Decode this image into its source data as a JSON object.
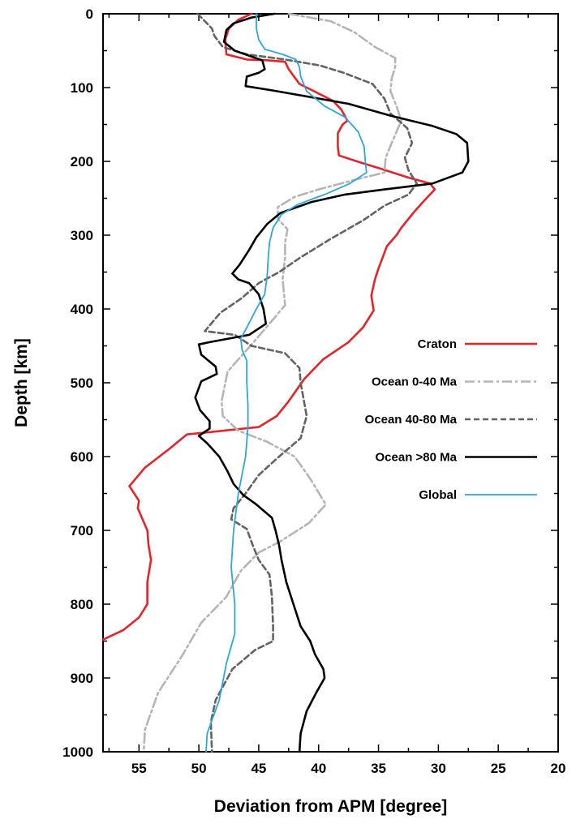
{
  "chart_data": {
    "type": "line",
    "title": "",
    "xlabel": "Deviation from APM [degree]",
    "ylabel": "Depth [km]",
    "xlim": [
      58,
      20
    ],
    "ylim": [
      0,
      1000
    ],
    "x_reversed": true,
    "y_reversed": true,
    "x_ticks": [
      "55",
      "50",
      "45",
      "40",
      "35",
      "30",
      "25",
      "20"
    ],
    "y_ticks": [
      "0",
      "100",
      "200",
      "300",
      "400",
      "500",
      "600",
      "700",
      "800",
      "900",
      "1000"
    ],
    "grid": false,
    "legend_position": "right",
    "series": [
      {
        "name": "Craton",
        "color": "#e3242b",
        "dash": "solid",
        "points": [
          [
            45.6,
            0
          ],
          [
            46.7,
            8
          ],
          [
            47.5,
            20
          ],
          [
            47.8,
            35
          ],
          [
            47.7,
            55
          ],
          [
            46,
            62
          ],
          [
            44.3,
            63
          ],
          [
            42.8,
            65
          ],
          [
            42.5,
            75
          ],
          [
            41.6,
            95
          ],
          [
            40,
            108
          ],
          [
            38.8,
            118
          ],
          [
            38.1,
            130
          ],
          [
            37.6,
            145
          ],
          [
            38,
            150
          ],
          [
            38.4,
            162
          ],
          [
            38.4,
            180
          ],
          [
            38.3,
            192
          ],
          [
            36.8,
            200
          ],
          [
            34.8,
            210
          ],
          [
            32.5,
            222
          ],
          [
            30.7,
            230
          ],
          [
            30.3,
            238
          ],
          [
            31,
            250
          ],
          [
            32,
            268
          ],
          [
            33.1,
            290
          ],
          [
            33.5,
            300
          ],
          [
            34.3,
            315
          ],
          [
            35,
            345
          ],
          [
            35.3,
            360
          ],
          [
            35.6,
            382
          ],
          [
            35.4,
            402
          ],
          [
            36.3,
            425
          ],
          [
            37.5,
            445
          ],
          [
            39.6,
            468
          ],
          [
            41.2,
            495
          ],
          [
            42.5,
            525
          ],
          [
            43.5,
            545
          ],
          [
            45,
            560
          ],
          [
            51,
            570
          ],
          [
            52.5,
            590
          ],
          [
            54.5,
            615
          ],
          [
            55.8,
            640
          ],
          [
            55,
            660
          ],
          [
            55.1,
            670
          ],
          [
            54.3,
            700
          ],
          [
            54.2,
            720
          ],
          [
            54,
            740
          ],
          [
            54.3,
            770
          ],
          [
            54.3,
            800
          ],
          [
            55,
            818
          ],
          [
            56.3,
            835
          ],
          [
            58,
            848
          ]
        ]
      },
      {
        "name": "Ocean 0-40 Ma",
        "color": "#b5b5b5",
        "dash": "dash-dot",
        "points": [
          [
            42.5,
            0
          ],
          [
            39,
            10
          ],
          [
            37,
            25
          ],
          [
            35.3,
            45
          ],
          [
            33.6,
            60
          ],
          [
            33.6,
            72
          ],
          [
            33.9,
            88
          ],
          [
            34,
            105
          ],
          [
            33.5,
            125
          ],
          [
            33.1,
            145
          ],
          [
            33.9,
            175
          ],
          [
            34.4,
            195
          ],
          [
            34.5,
            215
          ],
          [
            37,
            225
          ],
          [
            40,
            238
          ],
          [
            42,
            248
          ],
          [
            43.4,
            262
          ],
          [
            43.4,
            278
          ],
          [
            42.6,
            292
          ],
          [
            42.8,
            310
          ],
          [
            42.8,
            330
          ],
          [
            43,
            360
          ],
          [
            42.8,
            395
          ],
          [
            44,
            418
          ],
          [
            45.7,
            450
          ],
          [
            47.6,
            485
          ],
          [
            48.1,
            525
          ],
          [
            48,
            545
          ],
          [
            46.7,
            565
          ],
          [
            44.3,
            580
          ],
          [
            42,
            600
          ],
          [
            40.7,
            630
          ],
          [
            39.4,
            665
          ],
          [
            40.8,
            690
          ],
          [
            43.2,
            715
          ],
          [
            45,
            730
          ],
          [
            46.5,
            755
          ],
          [
            47.7,
            790
          ],
          [
            49.8,
            825
          ],
          [
            51.4,
            870
          ],
          [
            53.4,
            920
          ],
          [
            54.5,
            970
          ],
          [
            54.6,
            1000
          ]
        ]
      },
      {
        "name": "Ocean 40-80 Ma",
        "color": "#636363",
        "dash": "dash",
        "points": [
          [
            50.1,
            0
          ],
          [
            49.5,
            10
          ],
          [
            48.9,
            20
          ],
          [
            48.7,
            30
          ],
          [
            48,
            45
          ],
          [
            46,
            55
          ],
          [
            42.8,
            62
          ],
          [
            39.9,
            70
          ],
          [
            37.9,
            80
          ],
          [
            35.5,
            95
          ],
          [
            34.5,
            115
          ],
          [
            34,
            135
          ],
          [
            32.6,
            155
          ],
          [
            32.2,
            175
          ],
          [
            32.8,
            195
          ],
          [
            32.5,
            212
          ],
          [
            31.8,
            230
          ],
          [
            32.5,
            245
          ],
          [
            34.5,
            260
          ],
          [
            36.3,
            280
          ],
          [
            39,
            305
          ],
          [
            41.5,
            330
          ],
          [
            43.3,
            350
          ],
          [
            45,
            365
          ],
          [
            46.4,
            385
          ],
          [
            48.2,
            405
          ],
          [
            49.5,
            430
          ],
          [
            47,
            435
          ],
          [
            45.6,
            450
          ],
          [
            42.8,
            460
          ],
          [
            41.6,
            480
          ],
          [
            41.5,
            500
          ],
          [
            41,
            545
          ],
          [
            41.5,
            575
          ],
          [
            43.3,
            600
          ],
          [
            45,
            625
          ],
          [
            46.1,
            650
          ],
          [
            47.1,
            670
          ],
          [
            47.3,
            685
          ],
          [
            46,
            698
          ],
          [
            45.5,
            720
          ],
          [
            45,
            740
          ],
          [
            44.1,
            760
          ],
          [
            43.9,
            790
          ],
          [
            43.8,
            830
          ],
          [
            43.8,
            850
          ],
          [
            45.3,
            862
          ],
          [
            47.2,
            888
          ],
          [
            48.6,
            930
          ],
          [
            49,
            960
          ],
          [
            48.9,
            1000
          ]
        ]
      },
      {
        "name": "Ocean >80 Ma",
        "color": "#000000",
        "dash": "solid",
        "points": [
          [
            43.7,
            0
          ],
          [
            45.6,
            5
          ],
          [
            47.1,
            13
          ],
          [
            47.7,
            22
          ],
          [
            47.9,
            38
          ],
          [
            47,
            50
          ],
          [
            45.6,
            58
          ],
          [
            44.7,
            63
          ],
          [
            44.5,
            75
          ],
          [
            45,
            80
          ],
          [
            46,
            85
          ],
          [
            46.1,
            98
          ],
          [
            43.8,
            104
          ],
          [
            41,
            112
          ],
          [
            37.5,
            122
          ],
          [
            34,
            138
          ],
          [
            30.5,
            152
          ],
          [
            28.5,
            163
          ],
          [
            27.6,
            175
          ],
          [
            27.5,
            200
          ],
          [
            28,
            215
          ],
          [
            30.5,
            230
          ],
          [
            34.5,
            238
          ],
          [
            37.8,
            245
          ],
          [
            40.6,
            255
          ],
          [
            43.2,
            270
          ],
          [
            44.3,
            285
          ],
          [
            45.2,
            303
          ],
          [
            45.8,
            320
          ],
          [
            46.6,
            340
          ],
          [
            47.2,
            352
          ],
          [
            46.7,
            360
          ],
          [
            45.8,
            365
          ],
          [
            45,
            380
          ],
          [
            44.6,
            400
          ],
          [
            44.4,
            420
          ],
          [
            45.8,
            435
          ],
          [
            49.1,
            445
          ],
          [
            50,
            448
          ],
          [
            49.8,
            462
          ],
          [
            48.6,
            478
          ],
          [
            48.5,
            488
          ],
          [
            49.8,
            498
          ],
          [
            50.3,
            520
          ],
          [
            49.9,
            537
          ],
          [
            49.1,
            552
          ],
          [
            49.1,
            562
          ],
          [
            50,
            572
          ],
          [
            49.3,
            582
          ],
          [
            48.3,
            600
          ],
          [
            47.6,
            620
          ],
          [
            47.1,
            637
          ],
          [
            46.3,
            652
          ],
          [
            45.2,
            665
          ],
          [
            43.9,
            683
          ],
          [
            43.6,
            700
          ],
          [
            43.3,
            720
          ],
          [
            43.1,
            740
          ],
          [
            42.7,
            770
          ],
          [
            42.1,
            800
          ],
          [
            41.5,
            830
          ],
          [
            40.7,
            850
          ],
          [
            40.3,
            868
          ],
          [
            39.6,
            888
          ],
          [
            39.5,
            900
          ],
          [
            40.2,
            920
          ],
          [
            41,
            945
          ],
          [
            41.5,
            975
          ],
          [
            41.6,
            1000
          ]
        ]
      },
      {
        "name": "Global",
        "color": "#2fa6db",
        "dash": "solid",
        "points": [
          [
            45.2,
            0
          ],
          [
            45.2,
            20
          ],
          [
            45,
            35
          ],
          [
            44.5,
            48
          ],
          [
            43,
            55
          ],
          [
            41.9,
            62
          ],
          [
            41.6,
            72
          ],
          [
            41.5,
            85
          ],
          [
            41,
            105
          ],
          [
            39.5,
            125
          ],
          [
            37.8,
            140
          ],
          [
            36.7,
            160
          ],
          [
            36.2,
            180
          ],
          [
            36.1,
            200
          ],
          [
            36,
            215
          ],
          [
            37.4,
            230
          ],
          [
            39.5,
            245
          ],
          [
            41.7,
            258
          ],
          [
            43.1,
            272
          ],
          [
            43.8,
            290
          ],
          [
            44.1,
            310
          ],
          [
            44.2,
            330
          ],
          [
            44.3,
            355
          ],
          [
            44.5,
            380
          ],
          [
            45.2,
            400
          ],
          [
            46,
            425
          ],
          [
            46.5,
            440
          ],
          [
            46.4,
            455
          ],
          [
            46,
            470
          ],
          [
            46,
            500
          ],
          [
            45.9,
            530
          ],
          [
            45.9,
            560
          ],
          [
            46.1,
            600
          ],
          [
            46.7,
            650
          ],
          [
            47.1,
            700
          ],
          [
            47.3,
            750
          ],
          [
            47,
            800
          ],
          [
            47,
            840
          ],
          [
            47.7,
            880
          ],
          [
            48.3,
            930
          ],
          [
            49.3,
            975
          ],
          [
            49.4,
            1000
          ]
        ]
      }
    ]
  }
}
